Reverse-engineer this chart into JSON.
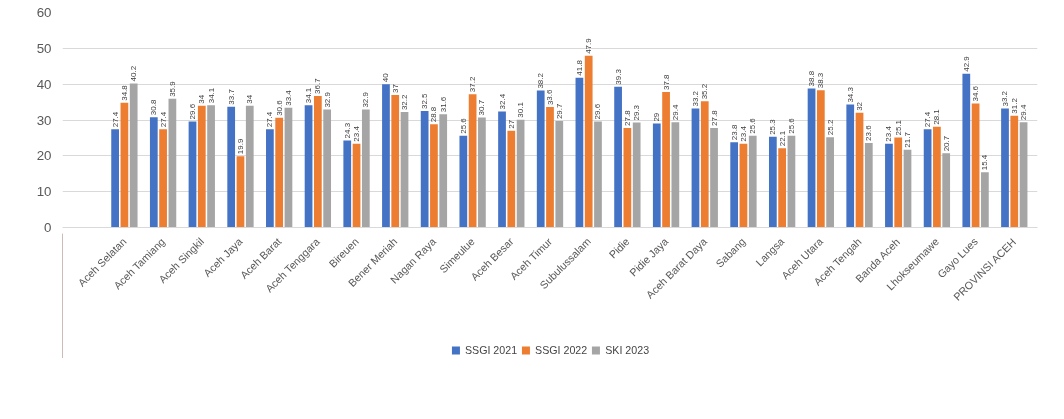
{
  "chart_data": {
    "type": "bar",
    "categories": [
      "Aceh Selatan",
      "Aceh Tamiang",
      "Aceh Singkil",
      "Aceh Jaya",
      "Aceh Barat",
      "Aceh Tenggara",
      "Bireuen",
      "Bener Meriah",
      "Nagan Raya",
      "Simeulue",
      "Aceh Besar",
      "Aceh Timur",
      "Subulussalam",
      "Pidie",
      "Pidie Jaya",
      "Aceh Barat Daya",
      "Sabang",
      "Langsa",
      "Aceh Utara",
      "Aceh Tengah",
      "Banda Aceh",
      "Lhokseumawe",
      "Gayo Lues",
      "PROVINSI ACEH"
    ],
    "series": [
      {
        "name": "SSGI 2021",
        "color": "#4472c4",
        "values": [
          27.4,
          30.8,
          29.6,
          33.7,
          27.4,
          34.1,
          24.3,
          40,
          32.5,
          25.6,
          32.4,
          38.2,
          41.8,
          39.3,
          29,
          33.2,
          23.8,
          25.3,
          38.8,
          34.3,
          23.4,
          27.4,
          42.9,
          33.2
        ]
      },
      {
        "name": "SSGI 2022",
        "color": "#ed7d31",
        "values": [
          34.8,
          27.4,
          34,
          19.9,
          30.6,
          36.7,
          23.4,
          37,
          28.8,
          37.2,
          27,
          33.6,
          47.9,
          27.8,
          37.8,
          35.2,
          23.4,
          22.1,
          38.3,
          32,
          25.1,
          28.1,
          34.6,
          31.2
        ]
      },
      {
        "name": "SKI 2023",
        "color": "#a5a5a5",
        "values": [
          40.2,
          35.9,
          34.1,
          34,
          33.4,
          32.9,
          32.9,
          32.2,
          31.6,
          30.7,
          30.1,
          29.7,
          29.6,
          29.3,
          29.4,
          27.8,
          25.6,
          25.6,
          25.2,
          23.6,
          21.7,
          20.7,
          15.4,
          29.4
        ]
      }
    ],
    "ylim": [
      0,
      60
    ],
    "yticks": [
      0,
      10,
      20,
      30,
      40,
      50,
      60
    ],
    "grid": "y",
    "legend": "bottom",
    "data_labels": true
  }
}
